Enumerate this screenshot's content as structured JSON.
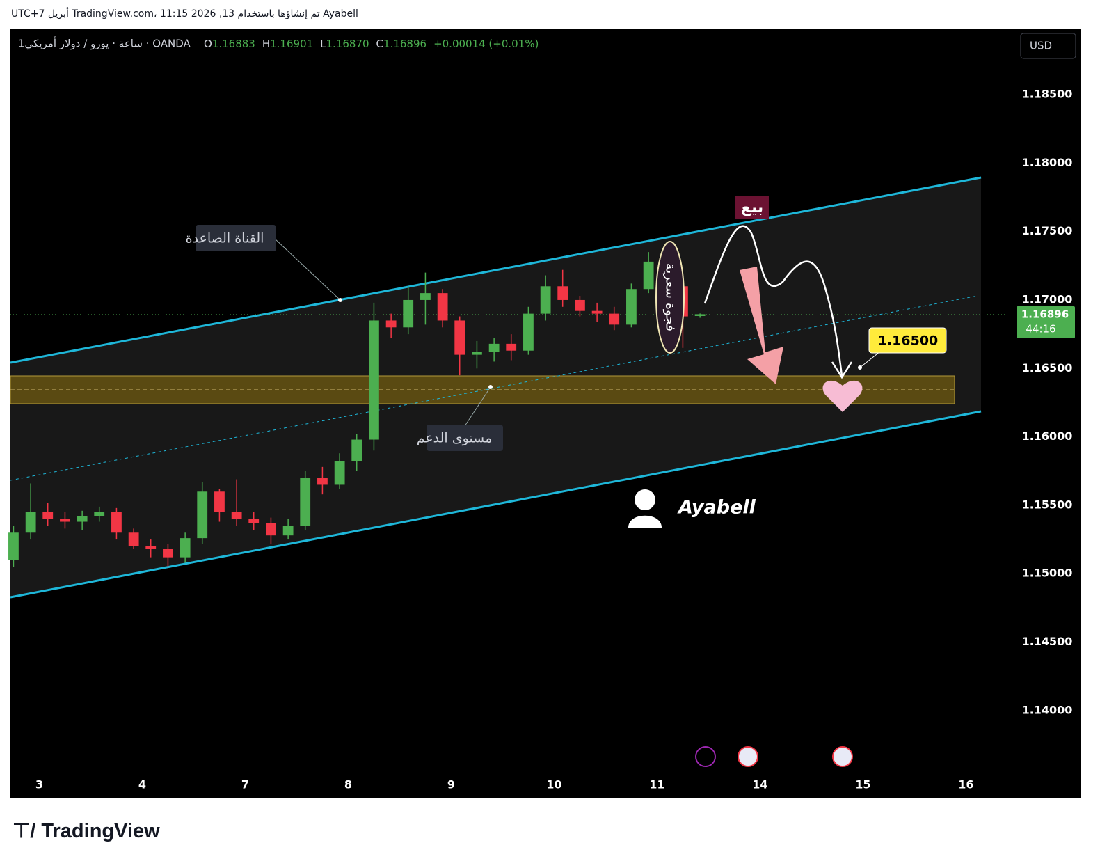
{
  "header": {
    "caption": "Ayabell تم إنشاؤها باستخدام TradingView.com، 11:15 2026 ,13 أبريل UTC+7",
    "logo": "TradingView"
  },
  "chart_data": {
    "type": "candlestick",
    "symbol": "1ساعة · يورو / دولار أمريكي · OANDA",
    "ohlc_header": {
      "o_label": "O",
      "o": "1.16883",
      "h_label": "H",
      "h": "1.16901",
      "l_label": "L",
      "l": "1.16870",
      "c_label": "C",
      "c": "1.16896",
      "change": "+0.00014 (+0.01%)"
    },
    "currency": "USD",
    "last_price_label": "1.16896",
    "countdown": "44:16",
    "up_color": "#4caf50",
    "down_color": "#f23645",
    "xlim": [
      -0.28,
      9.45
    ],
    "xticks": [
      {
        "value": 0,
        "label": "3"
      },
      {
        "value": 1,
        "label": "4"
      },
      {
        "value": 2,
        "label": "7"
      },
      {
        "value": 3,
        "label": "8"
      },
      {
        "value": 4,
        "label": "9"
      },
      {
        "value": 5,
        "label": "10"
      },
      {
        "value": 6,
        "label": "11"
      },
      {
        "value": 7,
        "label": "14"
      },
      {
        "value": 8,
        "label": "15"
      },
      {
        "value": 9,
        "label": "16"
      }
    ],
    "ylim": [
      1.13557,
      1.18978
    ],
    "yticks": [
      {
        "value": 1.14,
        "label": "1.14000"
      },
      {
        "value": 1.145,
        "label": "1.14500"
      },
      {
        "value": 1.15,
        "label": "1.15000"
      },
      {
        "value": 1.155,
        "label": "1.15500"
      },
      {
        "value": 1.16,
        "label": "1.16000"
      },
      {
        "value": 1.165,
        "label": "1.16500"
      },
      {
        "value": 1.17,
        "label": "1.17000"
      },
      {
        "value": 1.175,
        "label": "1.17500"
      },
      {
        "value": 1.18,
        "label": "1.18000"
      },
      {
        "value": 1.185,
        "label": "1.18500"
      }
    ],
    "x": [
      -0.25,
      -0.083,
      0.083,
      0.25,
      0.417,
      0.583,
      0.75,
      0.917,
      1.083,
      1.25,
      1.417,
      1.583,
      1.75,
      1.917,
      2.083,
      2.25,
      2.417,
      2.583,
      2.75,
      2.917,
      3.083,
      3.25,
      3.417,
      3.583,
      3.75,
      3.917,
      4.083,
      4.25,
      4.417,
      4.583,
      4.75,
      4.917,
      5.083,
      5.25,
      5.417,
      5.583,
      5.75,
      5.917,
      6.083,
      6.25,
      6.417
    ],
    "open": [
      1.151,
      1.153,
      1.1545,
      1.154,
      1.1538,
      1.1542,
      1.1545,
      1.153,
      1.152,
      1.1518,
      1.1512,
      1.1526,
      1.156,
      1.1545,
      1.154,
      1.1537,
      1.1528,
      1.1535,
      1.157,
      1.1565,
      1.1582,
      1.1598,
      1.1685,
      1.168,
      1.17,
      1.1705,
      1.1685,
      1.166,
      1.1662,
      1.1668,
      1.1663,
      1.169,
      1.171,
      1.17,
      1.1692,
      1.169,
      1.1682,
      1.1708,
      1.1728,
      1.171,
      1.16883
    ],
    "high": [
      1.1535,
      1.1566,
      1.1552,
      1.1545,
      1.1546,
      1.1549,
      1.1548,
      1.1533,
      1.1525,
      1.1522,
      1.153,
      1.1567,
      1.1562,
      1.1569,
      1.1545,
      1.1541,
      1.154,
      1.1575,
      1.1578,
      1.1588,
      1.1602,
      1.1698,
      1.169,
      1.171,
      1.172,
      1.1708,
      1.1688,
      1.167,
      1.1672,
      1.1675,
      1.1695,
      1.1718,
      1.1722,
      1.1703,
      1.1698,
      1.1695,
      1.1712,
      1.1735,
      1.1732,
      1.1712,
      1.16901
    ],
    "low": [
      1.1505,
      1.1525,
      1.1535,
      1.1533,
      1.1532,
      1.1538,
      1.1525,
      1.1518,
      1.1512,
      1.1505,
      1.1508,
      1.1522,
      1.1538,
      1.1535,
      1.1532,
      1.1522,
      1.1525,
      1.1532,
      1.1558,
      1.1562,
      1.1575,
      1.159,
      1.1672,
      1.1675,
      1.1682,
      1.168,
      1.1645,
      1.165,
      1.1655,
      1.1656,
      1.166,
      1.1685,
      1.1695,
      1.1688,
      1.1684,
      1.1678,
      1.168,
      1.1705,
      1.17,
      1.1665,
      1.1687
    ],
    "close": [
      1.153,
      1.1545,
      1.154,
      1.1538,
      1.1542,
      1.1545,
      1.153,
      1.152,
      1.1518,
      1.1512,
      1.1526,
      1.156,
      1.1545,
      1.154,
      1.1537,
      1.1528,
      1.1535,
      1.157,
      1.1565,
      1.1582,
      1.1598,
      1.1685,
      1.168,
      1.17,
      1.1705,
      1.1685,
      1.166,
      1.1662,
      1.1668,
      1.1663,
      1.169,
      1.171,
      1.17,
      1.1692,
      1.169,
      1.1682,
      1.1708,
      1.1728,
      1.171,
      1.1688,
      1.16896
    ],
    "annotations": {
      "channel": "القناة الصاعدة",
      "support": "مستوى الدعم",
      "sell": "بيع",
      "gap": "فجوة سعرية",
      "target": "1.16500",
      "watermark": "Ayabell"
    }
  }
}
